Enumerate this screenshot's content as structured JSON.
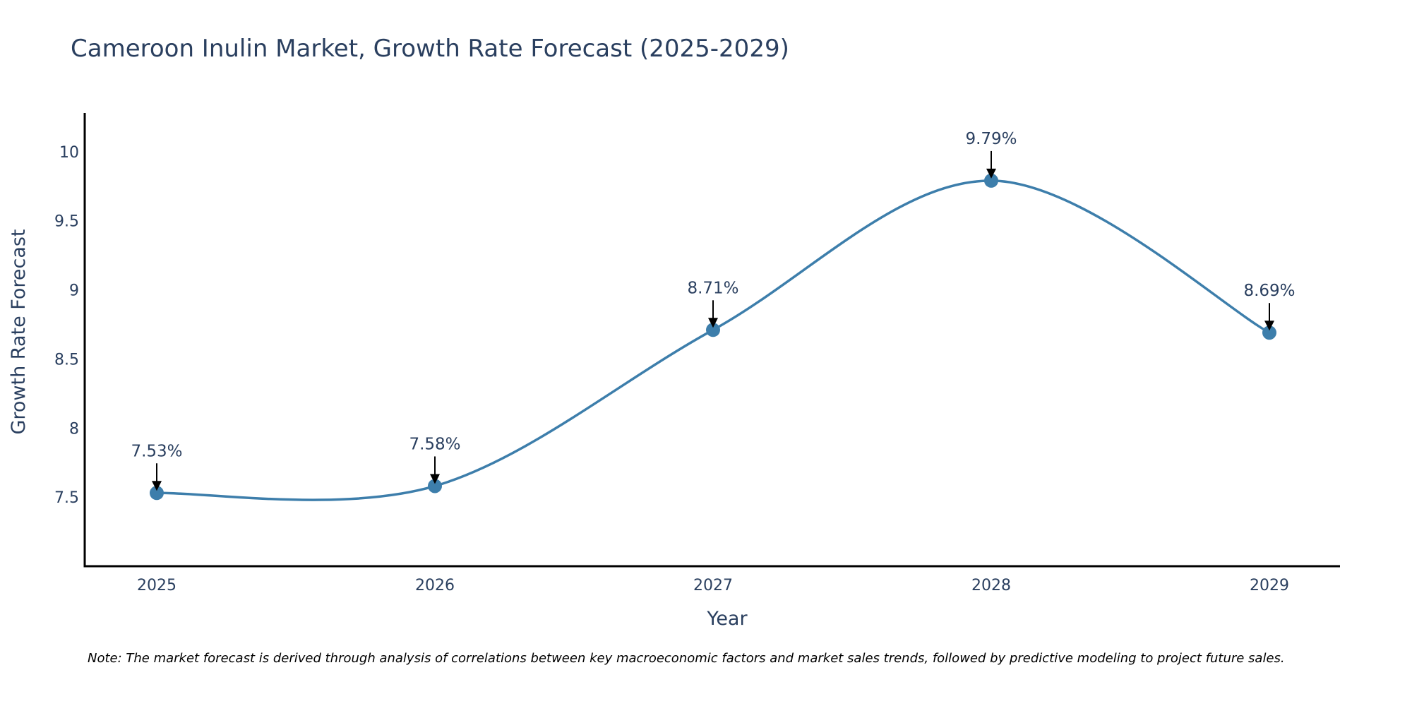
{
  "chart_data": {
    "type": "line",
    "title": "Cameroon Inulin Market, Growth Rate Forecast (2025-2029)",
    "xlabel": "Year",
    "ylabel": "Growth Rate Forecast",
    "categories": [
      "2025",
      "2026",
      "2027",
      "2028",
      "2029"
    ],
    "series": [
      {
        "name": "Growth Rate Forecast",
        "values": [
          7.53,
          7.58,
          8.71,
          9.79,
          8.69
        ],
        "labels": [
          "7.53%",
          "7.58%",
          "8.71%",
          "9.79%",
          "8.69%"
        ]
      }
    ],
    "ylim": [
      7.0,
      10.28
    ],
    "yticks": [
      7.5,
      8,
      8.5,
      9,
      9.5,
      10
    ],
    "ytick_labels": [
      "7.5",
      "8",
      "8.5",
      "9",
      "9.5",
      "10"
    ],
    "line_shape": "spline",
    "grid": false,
    "colors": {
      "line": "#3d7eab",
      "marker": "#3d7eab",
      "axis": "#000000",
      "text": "#2a3f5f",
      "arrow": "#000000"
    },
    "note": "Note: The market forecast is derived through analysis of correlations between key macroeconomic factors and market sales trends, followed by predictive modeling to project future sales."
  }
}
